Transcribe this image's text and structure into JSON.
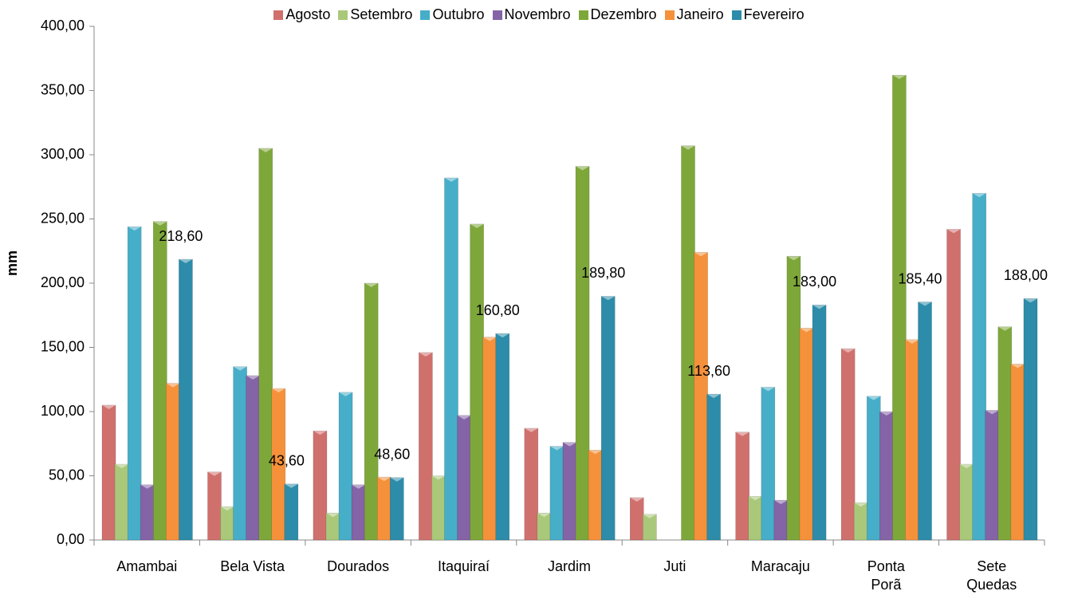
{
  "chart_data": {
    "type": "bar",
    "y_label": "mm",
    "categories": [
      "Amambai",
      "Bela Vista",
      "Dourados",
      "Itaquiraí",
      "Jardim",
      "Juti",
      "Maracaju",
      "Ponta Porã",
      "Sete Quedas"
    ],
    "series": [
      {
        "name": "Agosto",
        "color": "#d0706d",
        "values": [
          105,
          53,
          85,
          146,
          87,
          33,
          84,
          149,
          242
        ]
      },
      {
        "name": "Setembro",
        "color": "#aac87a",
        "values": [
          59,
          26,
          21,
          50,
          21,
          20,
          34,
          29,
          59
        ]
      },
      {
        "name": "Outubro",
        "color": "#46aec8",
        "values": [
          244,
          135,
          115,
          282,
          73,
          null,
          119,
          112,
          270
        ]
      },
      {
        "name": "Novembro",
        "color": "#8463a6",
        "values": [
          43,
          128,
          43,
          97,
          76,
          null,
          31,
          100,
          101
        ]
      },
      {
        "name": "Dezembro",
        "color": "#7ea73a",
        "values": [
          248,
          305,
          200,
          246,
          291,
          307,
          221,
          362,
          166
        ]
      },
      {
        "name": "Janeiro",
        "color": "#f5913a",
        "values": [
          122,
          118,
          49,
          158,
          70,
          224,
          165,
          156,
          137
        ]
      },
      {
        "name": "Fevereiro",
        "color": "#2c8caa",
        "values": [
          218.6,
          43.6,
          48.6,
          160.8,
          189.8,
          113.6,
          183,
          185.4,
          188
        ],
        "value_labels": [
          "218,60",
          "43,60",
          "48,60",
          "160,80",
          "189,80",
          "113,60",
          "183,00",
          "185,40",
          "188,00"
        ]
      }
    ],
    "ylim": [
      0,
      400
    ],
    "yticks": [
      {
        "value": 0,
        "label": "0,00"
      },
      {
        "value": 50,
        "label": "50,00"
      },
      {
        "value": 100,
        "label": "100,00"
      },
      {
        "value": 150,
        "label": "150,00"
      },
      {
        "value": 200,
        "label": "200,00"
      },
      {
        "value": 250,
        "label": "250,00"
      },
      {
        "value": 300,
        "label": "300,00"
      },
      {
        "value": 350,
        "label": "350,00"
      },
      {
        "value": 400,
        "label": "400,00"
      }
    ],
    "legend": "top"
  }
}
